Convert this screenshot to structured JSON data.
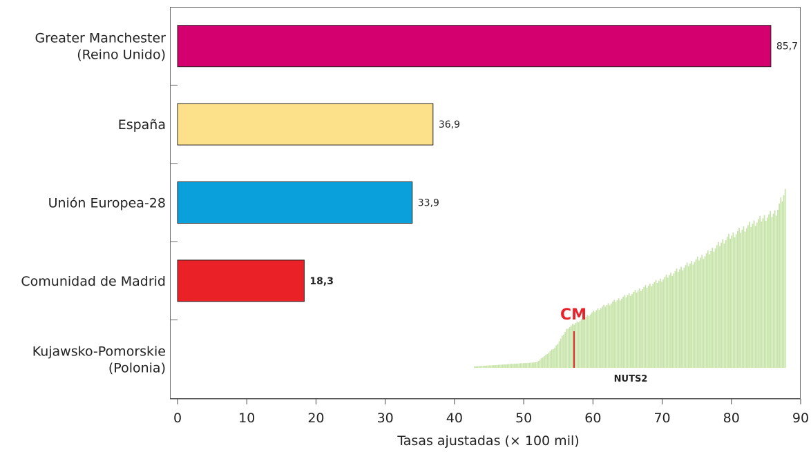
{
  "chart_data": {
    "type": "bar",
    "orientation": "horizontal",
    "categories": [
      [
        "Greater Manchester",
        "(Reino Unido)"
      ],
      [
        "España"
      ],
      [
        "Unión Europea-28"
      ],
      [
        "Comunidad de Madrid"
      ],
      [
        "Kujawsko-Pomorskie",
        "(Polonia)"
      ]
    ],
    "values": [
      85.7,
      36.9,
      33.9,
      18.3,
      null
    ],
    "value_labels": [
      "85,7",
      "36,9",
      "33,9",
      "18,3",
      ""
    ],
    "bold_value_index": 3,
    "bar_colors": [
      "#d4006f",
      "#fde08a",
      "#0aa0dc",
      "#ea2127",
      ""
    ],
    "xlabel": "Tasas ajustadas (× 100 mil)",
    "xlim": [
      0,
      90
    ],
    "xticks": [
      0,
      10,
      20,
      30,
      40,
      50,
      60,
      70,
      80,
      90
    ],
    "grid": false,
    "inset": {
      "type": "ranked-bar",
      "highlight_label": "CM",
      "caption": "NUTS2",
      "bar_color": "#c6e3a8",
      "highlight_color": "#e8222a"
    }
  }
}
